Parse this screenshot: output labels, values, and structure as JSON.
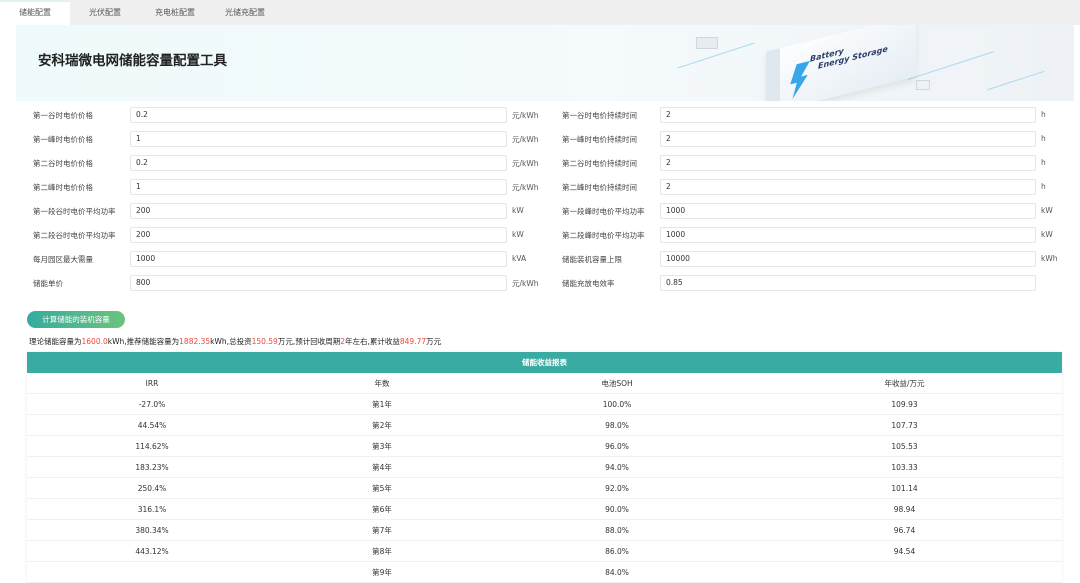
{
  "tabs": [
    {
      "label": "储能配置",
      "active": true
    },
    {
      "label": "光伏配置"
    },
    {
      "label": "充电桩配置"
    },
    {
      "label": "光储充配置"
    }
  ],
  "banner": {
    "title": "安科瑞微电网储能容量配置工具",
    "image_text_line1": "Battery",
    "image_text_line2": "Energy Storage"
  },
  "form": {
    "left": [
      {
        "label": "第一谷时电价价格",
        "value": "0.2",
        "unit": "元/kWh"
      },
      {
        "label": "第一峰时电价价格",
        "value": "1",
        "unit": "元/kWh"
      },
      {
        "label": "第二谷时电价价格",
        "value": "0.2",
        "unit": "元/kWh"
      },
      {
        "label": "第二峰时电价价格",
        "value": "1",
        "unit": "元/kWh"
      },
      {
        "label": "第一段谷时电价平均功率",
        "value": "200",
        "unit": "kW"
      },
      {
        "label": "第二段谷时电价平均功率",
        "value": "200",
        "unit": "kW"
      },
      {
        "label": "每月园区最大需量",
        "value": "1000",
        "unit": "kVA"
      },
      {
        "label": "储能单价",
        "value": "800",
        "unit": "元/kWh"
      }
    ],
    "right": [
      {
        "label": "第一谷时电价持续时间",
        "value": "2",
        "unit": "h"
      },
      {
        "label": "第一峰时电价持续时间",
        "value": "2",
        "unit": "h"
      },
      {
        "label": "第二谷时电价持续时间",
        "value": "2",
        "unit": "h"
      },
      {
        "label": "第二峰时电价持续时间",
        "value": "2",
        "unit": "h"
      },
      {
        "label": "第一段峰时电价平均功率",
        "value": "1000",
        "unit": "kW"
      },
      {
        "label": "第二段峰时电价平均功率",
        "value": "1000",
        "unit": "kW"
      },
      {
        "label": "储能装机容量上限",
        "value": "10000",
        "unit": "kWh"
      },
      {
        "label": "储能充放电效率",
        "value": "0.85",
        "unit": ""
      }
    ]
  },
  "calc_button": "计算储能的装机容量",
  "result": {
    "t1": "理论储能容量为",
    "theory": "1600.0",
    "t2": "kWh,推荐储能容量为",
    "recommended": "1882.35",
    "t3": "kWh,总投资",
    "investment": "150.59",
    "t4": "万元,预计回收周期",
    "payback": "2",
    "t5": "年左右,累计收益",
    "total_income": "849.77",
    "t6": "万元"
  },
  "table": {
    "title": "储能收益报表",
    "columns": [
      "IRR",
      "年数",
      "电池SOH",
      "年收益/万元"
    ],
    "rows": [
      [
        "-27.0%",
        "第1年",
        "100.0%",
        "109.93"
      ],
      [
        "44.54%",
        "第2年",
        "98.0%",
        "107.73"
      ],
      [
        "114.62%",
        "第3年",
        "96.0%",
        "105.53"
      ],
      [
        "183.23%",
        "第4年",
        "94.0%",
        "103.33"
      ],
      [
        "250.4%",
        "第5年",
        "92.0%",
        "101.14"
      ],
      [
        "316.1%",
        "第6年",
        "90.0%",
        "98.94"
      ],
      [
        "380.34%",
        "第7年",
        "88.0%",
        "96.74"
      ],
      [
        "443.12%",
        "第8年",
        "86.0%",
        "94.54"
      ],
      [
        "",
        "第9年",
        "84.0%",
        ""
      ]
    ]
  },
  "colors": {
    "accent": "#3aaba3",
    "highlight": "#f0473f"
  }
}
